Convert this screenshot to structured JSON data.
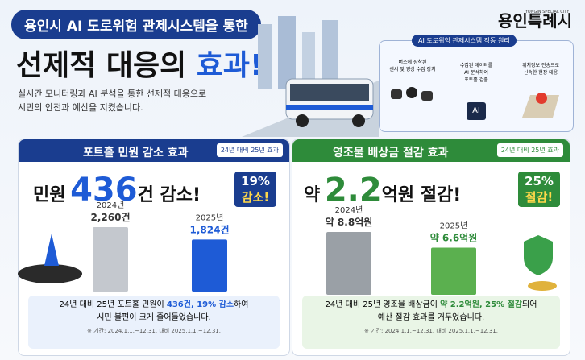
{
  "header": {
    "badge": "용인시 AI 도로위험 관제시스템을 통한",
    "title_main": "선제적 대응의",
    "title_accent": "효과!",
    "subtitle_lines": [
      "실시간 모니터링과 AI 분석을 통한 선제적 대응으로",
      "시민의 안전과 예산을 지켰습니다."
    ],
    "logo": "용인특례시",
    "logo_sub": "YONGIN SPECIAL CITY"
  },
  "diagram": {
    "title": "AI 도로위험 관제시스템 작동 원리",
    "steps": [
      [
        "버스에 장착된",
        "센서 및 영상 수집 장치"
      ],
      [
        "수집된 데이터를",
        "AI 분석하여",
        "포트홀 검출"
      ],
      [
        "위치정보 전송으로",
        "신속한 현장 대응"
      ]
    ],
    "ai_label": "AI"
  },
  "panels": [
    {
      "title": "포트홀 민원 감소 효과",
      "tag": "24년 대비 25년 효과",
      "headline": [
        "민원",
        "436",
        "건 감소!"
      ],
      "badge": [
        "19%",
        "감소!"
      ],
      "bars": [
        {
          "year": "2024년",
          "label": "2,260건",
          "value": 2260
        },
        {
          "year": "2025년",
          "label": "1,824건",
          "value": 1824
        }
      ],
      "desc": [
        [
          "24년 대비 25년 포트홀 민원이 ",
          "436건, 19% 감소",
          "하여"
        ],
        [
          "시민 불편이 크게 줄어들었습니다."
        ]
      ],
      "note": "※ 기간: 2024.1.1.~12.31. 대비 2025.1.1.~12.31."
    },
    {
      "title": "영조물 배상금 절감 효과",
      "tag": "24년 대비 25년 효과",
      "headline": [
        "약",
        "2.2",
        "억원 절감!"
      ],
      "badge": [
        "25%",
        "절감!"
      ],
      "bars": [
        {
          "year": "2024년",
          "label": "약 8.8억원",
          "value": 8.8
        },
        {
          "year": "2025년",
          "label": "약 6.6억원",
          "value": 6.6
        }
      ],
      "desc": [
        [
          "24년 대비 25년 영조물 배상금이 ",
          "약 2.2억원, 25% 절감",
          "되어"
        ],
        [
          "예산 절감 효과를 거두었습니다."
        ]
      ],
      "note": "※ 기간: 2024.1.1.~12.31. 대비 2025.1.1.~12.31."
    }
  ]
}
